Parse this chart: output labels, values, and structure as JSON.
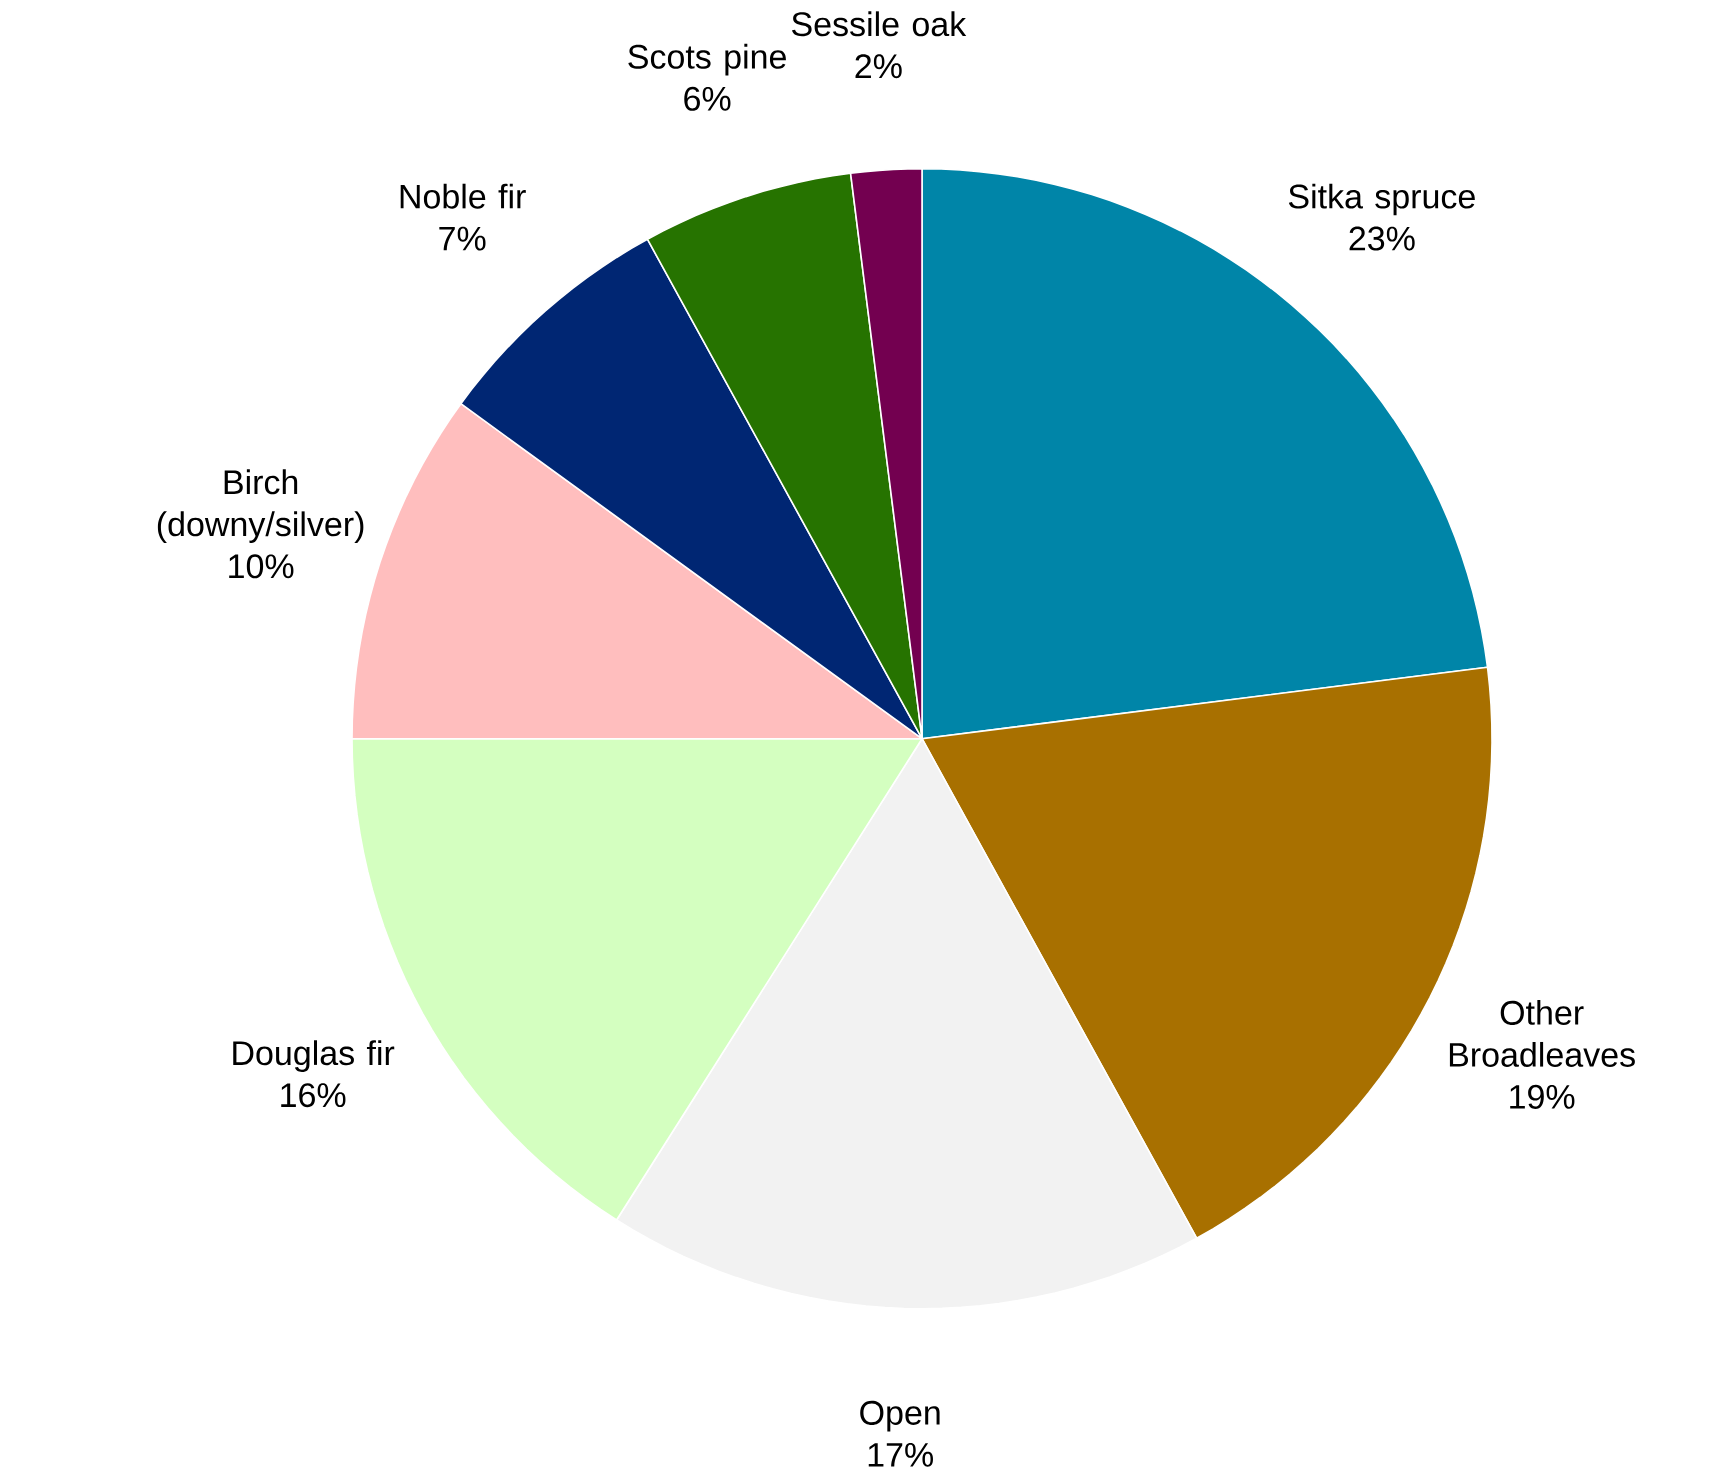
{
  "chart_data": {
    "type": "pie",
    "categories": [
      "Sitka spruce",
      "Other Broadleaves",
      "Open",
      "Douglas fir",
      "Birch (downy/silver)",
      "Noble fir",
      "Scots pine",
      "Sessile oak"
    ],
    "values": [
      23,
      19,
      17,
      16,
      10,
      7,
      6,
      2
    ],
    "value_labels": [
      "23%",
      "19%",
      "17%",
      "16%",
      "10%",
      "7%",
      "6%",
      "2%"
    ],
    "colors": [
      "#0085a8",
      "#a87000",
      "#f2f2f2",
      "#d4ffc0",
      "#ffbebe",
      "#002673",
      "#267300",
      "#730050"
    ]
  }
}
